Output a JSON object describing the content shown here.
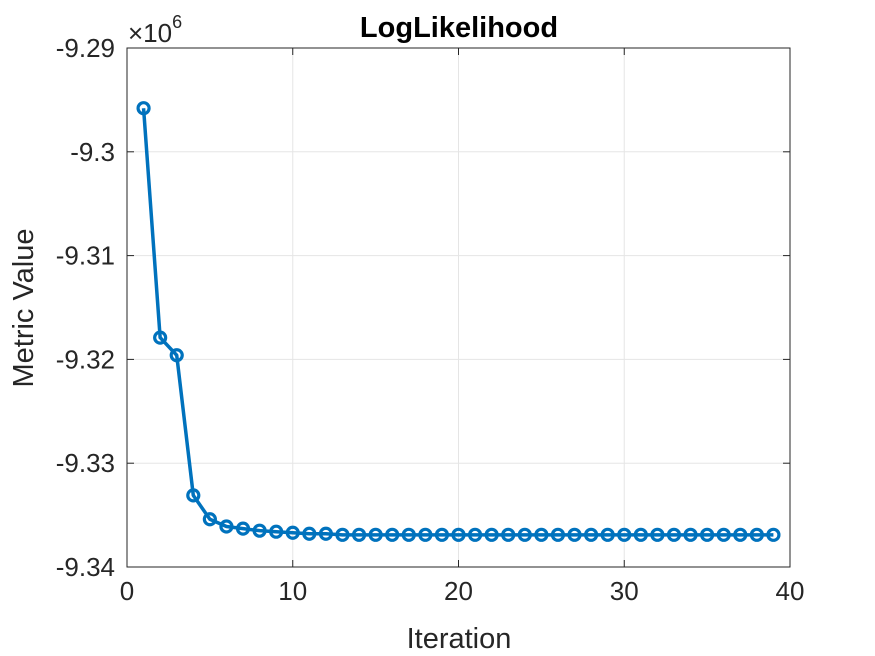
{
  "chart_data": {
    "type": "line",
    "title": "LogLikelihood",
    "xlabel": "Iteration",
    "ylabel": "Metric Value",
    "xlim": [
      0,
      40
    ],
    "ylim": [
      -9.34,
      -9.29
    ],
    "x_ticks": [
      0,
      10,
      20,
      30,
      40
    ],
    "x_tick_labels": [
      "0",
      "10",
      "20",
      "30",
      "40"
    ],
    "y_ticks": [
      -9.34,
      -9.33,
      -9.32,
      -9.31,
      -9.3,
      -9.29
    ],
    "y_tick_labels": [
      "-9.34",
      "-9.33",
      "-9.32",
      "-9.31",
      "-9.3",
      "-9.29"
    ],
    "y_multiplier": {
      "base": "×10",
      "exponent": "6"
    },
    "grid": true,
    "colors": {
      "series": "#0072BD",
      "grid": "#e5e5e5",
      "axis": "#262626"
    },
    "series": [
      {
        "marker": "circle",
        "x": [
          1,
          2,
          3,
          4,
          5,
          6,
          7,
          8,
          9,
          10,
          11,
          12,
          13,
          14,
          15,
          16,
          17,
          18,
          19,
          20,
          21,
          22,
          23,
          24,
          25,
          26,
          27,
          28,
          29,
          30,
          31,
          32,
          33,
          34,
          35,
          36,
          37,
          38,
          39
        ],
        "y": [
          -9.2958,
          -9.3179,
          -9.3196,
          -9.3331,
          -9.3354,
          -9.3361,
          -9.3363,
          -9.3365,
          -9.3366,
          -9.3367,
          -9.3368,
          -9.3368,
          -9.3369,
          -9.3369,
          -9.3369,
          -9.3369,
          -9.3369,
          -9.3369,
          -9.3369,
          -9.3369,
          -9.3369,
          -9.3369,
          -9.3369,
          -9.3369,
          -9.3369,
          -9.3369,
          -9.3369,
          -9.3369,
          -9.3369,
          -9.3369,
          -9.3369,
          -9.3369,
          -9.3369,
          -9.3369,
          -9.3369,
          -9.3369,
          -9.3369,
          -9.3369,
          -9.3369
        ]
      }
    ]
  }
}
